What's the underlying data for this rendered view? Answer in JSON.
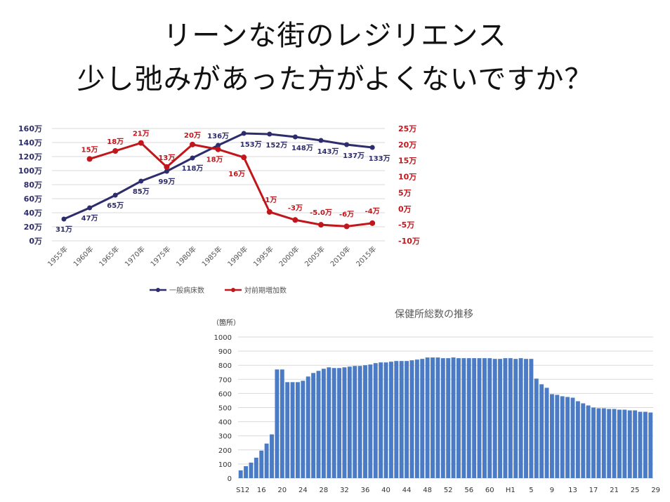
{
  "slide": {
    "title_line1": "リーンな街のレジリエンス",
    "title_line2": "少し弛みがあった方がよくないですか？"
  },
  "colors": {
    "beds": "#2e2d6b",
    "change": "#c0161c",
    "bars": "#4a7bc4",
    "grid": "#d9d9d9"
  },
  "chart_data": [
    {
      "type": "line",
      "title": "",
      "xlabel": "",
      "ylabel": "",
      "categories": [
        "1955年",
        "1960年",
        "1965年",
        "1970年",
        "1975年",
        "1980年",
        "1985年",
        "1990年",
        "1995年",
        "2000年",
        "2005年",
        "2010年",
        "2015年"
      ],
      "left_axis": {
        "ylim": [
          0,
          160
        ],
        "tick_labels": [
          "0万",
          "20万",
          "40万",
          "60万",
          "80万",
          "100万",
          "120万",
          "140万",
          "160万"
        ]
      },
      "right_axis": {
        "ylim": [
          -10,
          25
        ],
        "tick_labels": [
          "-10万",
          "-5万",
          "0万",
          "5万",
          "10万",
          "15万",
          "20万",
          "25万"
        ]
      },
      "series": [
        {
          "name": "一般病床数",
          "axis": "left",
          "values": [
            31,
            47,
            65,
            85,
            99,
            118,
            136,
            153,
            152,
            148,
            143,
            137,
            133
          ],
          "labels": [
            "31万",
            "47万",
            "65万",
            "85万",
            "99万",
            "118万",
            "136万",
            "153万",
            "152万",
            "148万",
            "143万",
            "137万",
            "133万"
          ]
        },
        {
          "name": "対前期増加数",
          "axis": "right",
          "values": [
            null,
            15.5,
            18,
            20.5,
            13,
            20,
            18.5,
            16,
            -1,
            -3.5,
            -5,
            -5.5,
            -4.5
          ],
          "labels": [
            "",
            "15万",
            "18万",
            "21万",
            "13万",
            "20万",
            "18万",
            "16万",
            "-1万",
            "-3万",
            "-5.0万",
            "-6万",
            "-4万"
          ]
        }
      ],
      "grid": true,
      "legend": "bottom"
    },
    {
      "type": "bar",
      "title": "保健所総数の推移",
      "ylabel": "（箇所）",
      "ylim": [
        0,
        1000
      ],
      "ytick_labels": [
        "0",
        "100",
        "200",
        "300",
        "400",
        "500",
        "600",
        "700",
        "800",
        "900",
        "1000"
      ],
      "xtick_labels": [
        "S12",
        "16",
        "20",
        "24",
        "28",
        "32",
        "36",
        "40",
        "44",
        "48",
        "52",
        "56",
        "60",
        "H1",
        "5",
        "9",
        "13",
        "17",
        "21",
        "25",
        "29"
      ],
      "values": [
        55,
        85,
        110,
        145,
        195,
        245,
        310,
        770,
        770,
        680,
        680,
        680,
        690,
        720,
        745,
        760,
        775,
        785,
        780,
        780,
        785,
        790,
        795,
        795,
        800,
        805,
        815,
        820,
        820,
        825,
        830,
        830,
        830,
        835,
        840,
        845,
        855,
        855,
        855,
        850,
        850,
        855,
        850,
        850,
        850,
        850,
        850,
        850,
        850,
        845,
        845,
        850,
        850,
        845,
        850,
        845,
        845,
        705,
        665,
        640,
        595,
        590,
        580,
        575,
        570,
        545,
        530,
        515,
        500,
        495,
        495,
        490,
        490,
        485,
        485,
        480,
        480,
        470,
        470,
        465
      ]
    }
  ]
}
